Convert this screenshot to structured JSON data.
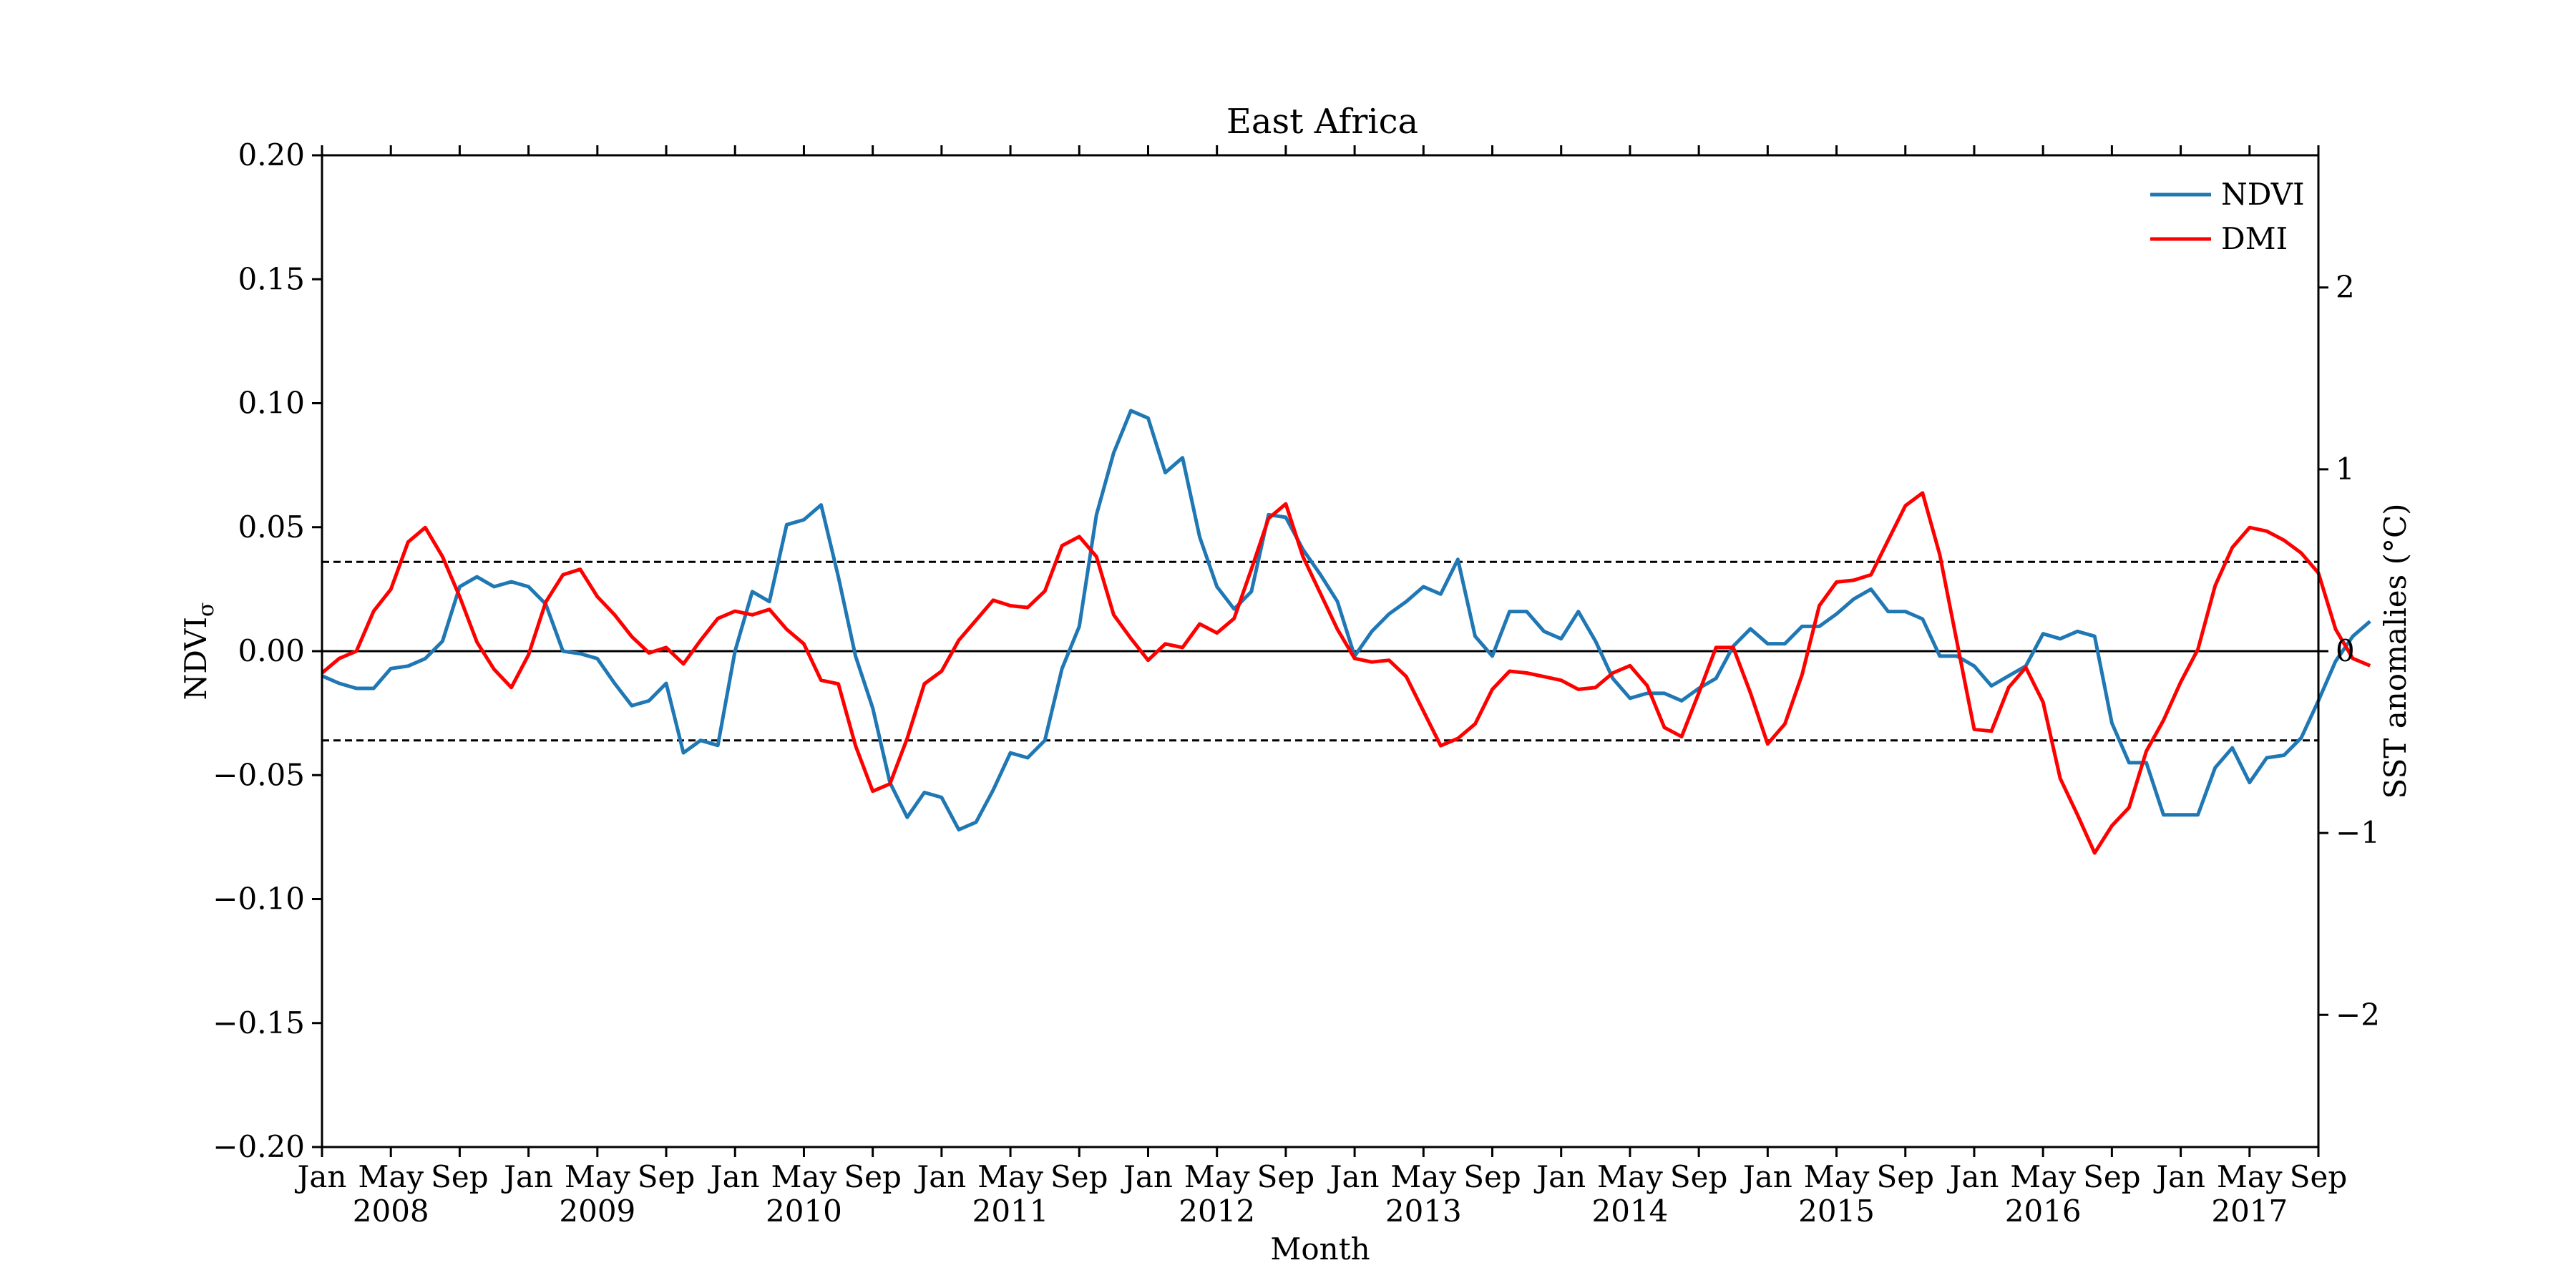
{
  "chart_data": {
    "type": "line",
    "title": "East Africa",
    "xlabel": "Month",
    "ylabel_left": "NDVI",
    "ylabel_left_subscript": "σ",
    "ylabel_right": "SST anomalies (°C)",
    "x_start": "2008-01",
    "x_end": "2017-09",
    "x_tick_labels": [
      {
        "date": "2008-01",
        "month": "Jan",
        "year": ""
      },
      {
        "date": "2008-05",
        "month": "May",
        "year": "2008"
      },
      {
        "date": "2008-09",
        "month": "Sep",
        "year": ""
      },
      {
        "date": "2009-01",
        "month": "Jan",
        "year": ""
      },
      {
        "date": "2009-05",
        "month": "May",
        "year": "2009"
      },
      {
        "date": "2009-09",
        "month": "Sep",
        "year": ""
      },
      {
        "date": "2010-01",
        "month": "Jan",
        "year": ""
      },
      {
        "date": "2010-05",
        "month": "May",
        "year": "2010"
      },
      {
        "date": "2010-09",
        "month": "Sep",
        "year": ""
      },
      {
        "date": "2011-01",
        "month": "Jan",
        "year": ""
      },
      {
        "date": "2011-05",
        "month": "May",
        "year": "2011"
      },
      {
        "date": "2011-09",
        "month": "Sep",
        "year": ""
      },
      {
        "date": "2012-01",
        "month": "Jan",
        "year": ""
      },
      {
        "date": "2012-05",
        "month": "May",
        "year": "2012"
      },
      {
        "date": "2012-09",
        "month": "Sep",
        "year": ""
      },
      {
        "date": "2013-01",
        "month": "Jan",
        "year": ""
      },
      {
        "date": "2013-05",
        "month": "May",
        "year": "2013"
      },
      {
        "date": "2013-09",
        "month": "Sep",
        "year": ""
      },
      {
        "date": "2014-01",
        "month": "Jan",
        "year": ""
      },
      {
        "date": "2014-05",
        "month": "May",
        "year": "2014"
      },
      {
        "date": "2014-09",
        "month": "Sep",
        "year": ""
      },
      {
        "date": "2015-01",
        "month": "Jan",
        "year": ""
      },
      {
        "date": "2015-05",
        "month": "May",
        "year": "2015"
      },
      {
        "date": "2015-09",
        "month": "Sep",
        "year": ""
      },
      {
        "date": "2016-01",
        "month": "Jan",
        "year": ""
      },
      {
        "date": "2016-05",
        "month": "May",
        "year": "2016"
      },
      {
        "date": "2016-09",
        "month": "Sep",
        "year": ""
      },
      {
        "date": "2017-01",
        "month": "Jan",
        "year": ""
      },
      {
        "date": "2017-05",
        "month": "May",
        "year": "2017"
      },
      {
        "date": "2017-09",
        "month": "Sep",
        "year": ""
      }
    ],
    "y_left_lim": [
      -0.2,
      0.2
    ],
    "y_left_ticks": [
      -0.2,
      -0.15,
      -0.1,
      -0.05,
      0.0,
      0.05,
      0.1,
      0.15,
      0.2
    ],
    "y_left_tick_labels": [
      "−0.20",
      "−0.15",
      "−0.10",
      "−0.05",
      "0.00",
      "0.05",
      "0.10",
      "0.15",
      "0.20"
    ],
    "y_right_lim": [
      -2.727,
      2.727
    ],
    "y_right_ticks": [
      -2,
      -1,
      0,
      1,
      2
    ],
    "y_right_tick_labels": [
      "−2",
      "−1",
      "0",
      "1",
      "2"
    ],
    "reference_lines": [
      {
        "y": 0.0,
        "style": "solid"
      },
      {
        "y": 0.036,
        "style": "dashed"
      },
      {
        "y": -0.036,
        "style": "dashed"
      }
    ],
    "grid": false,
    "legend_position": "top-right",
    "series": [
      {
        "name": "NDVI",
        "axis": "left",
        "color": "#1f77b4",
        "start": "2008-01",
        "values": [
          -0.01,
          -0.013,
          -0.015,
          -0.015,
          -0.007,
          -0.006,
          -0.003,
          0.004,
          0.026,
          0.03,
          0.026,
          0.028,
          0.026,
          0.019,
          0.0,
          -0.001,
          -0.003,
          -0.013,
          -0.022,
          -0.02,
          -0.013,
          -0.041,
          -0.036,
          -0.038,
          0.0,
          0.024,
          0.02,
          0.051,
          0.053,
          0.059,
          0.03,
          -0.002,
          -0.023,
          -0.053,
          -0.067,
          -0.057,
          -0.059,
          -0.072,
          -0.069,
          -0.056,
          -0.041,
          -0.043,
          -0.036,
          -0.007,
          0.01,
          0.055,
          0.08,
          0.097,
          0.094,
          0.072,
          0.078,
          0.046,
          0.026,
          0.017,
          0.024,
          0.055,
          0.054,
          0.041,
          0.031,
          0.02,
          -0.002,
          0.008,
          0.015,
          0.02,
          0.026,
          0.023,
          0.037,
          0.006,
          -0.002,
          0.016,
          0.016,
          0.008,
          0.005,
          0.016,
          0.004,
          -0.011,
          -0.019,
          -0.017,
          -0.017,
          -0.02,
          -0.015,
          -0.011,
          0.002,
          0.009,
          0.003,
          0.003,
          0.01,
          0.01,
          0.015,
          0.021,
          0.025,
          0.016,
          0.016,
          0.013,
          -0.002,
          -0.002,
          -0.006,
          -0.014,
          -0.01,
          -0.006,
          0.007,
          0.005,
          0.008,
          0.006,
          -0.029,
          -0.045,
          -0.045,
          -0.066,
          -0.066,
          -0.066,
          -0.047,
          -0.039,
          -0.053,
          -0.043,
          -0.042,
          -0.035,
          -0.02,
          -0.004,
          0.006,
          0.012
        ]
      },
      {
        "name": "DMI",
        "axis": "right",
        "color": "#ff0000",
        "start": "2008-01",
        "values": [
          -0.12,
          -0.04,
          0.0,
          0.22,
          0.34,
          0.6,
          0.68,
          0.52,
          0.3,
          0.05,
          -0.1,
          -0.2,
          -0.02,
          0.27,
          0.42,
          0.45,
          0.3,
          0.2,
          0.08,
          -0.01,
          0.02,
          -0.07,
          0.06,
          0.18,
          0.22,
          0.2,
          0.23,
          0.12,
          0.04,
          -0.16,
          -0.18,
          -0.52,
          -0.77,
          -0.73,
          -0.48,
          -0.18,
          -0.11,
          0.06,
          0.17,
          0.28,
          0.25,
          0.24,
          0.33,
          0.58,
          0.63,
          0.52,
          0.2,
          0.07,
          -0.05,
          0.04,
          0.02,
          0.15,
          0.1,
          0.18,
          0.45,
          0.73,
          0.81,
          0.52,
          0.32,
          0.12,
          -0.04,
          -0.06,
          -0.05,
          -0.14,
          -0.33,
          -0.52,
          -0.48,
          -0.4,
          -0.21,
          -0.11,
          -0.12,
          -0.14,
          -0.16,
          -0.21,
          -0.2,
          -0.12,
          -0.08,
          -0.19,
          -0.42,
          -0.47,
          -0.23,
          0.02,
          0.02,
          -0.23,
          -0.51,
          -0.4,
          -0.13,
          0.25,
          0.38,
          0.39,
          0.42,
          0.61,
          0.8,
          0.87,
          0.53,
          0.05,
          -0.43,
          -0.44,
          -0.2,
          -0.09,
          -0.28,
          -0.7,
          -0.9,
          -1.11,
          -0.96,
          -0.86,
          -0.55,
          -0.38,
          -0.17,
          0.01,
          0.36,
          0.57,
          0.68,
          0.66,
          0.61,
          0.54,
          0.43,
          0.12,
          -0.04,
          -0.08
        ]
      }
    ]
  }
}
